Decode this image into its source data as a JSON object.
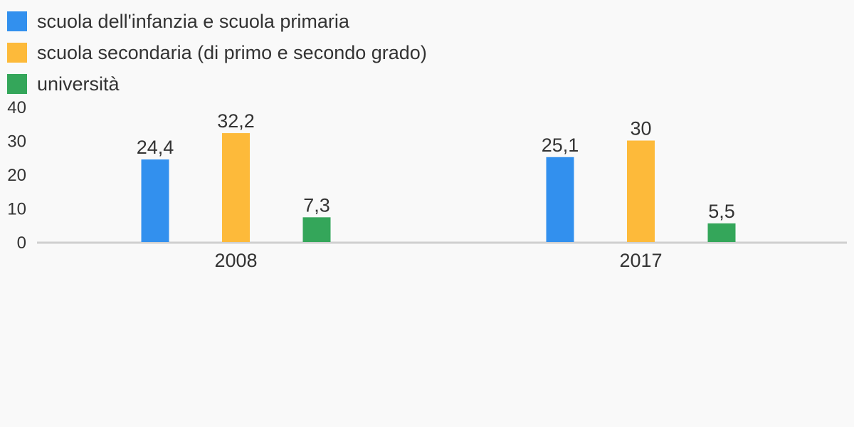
{
  "chart_data": {
    "type": "bar",
    "categories": [
      "2008",
      "2017"
    ],
    "series": [
      {
        "name": "scuola dell'infanzia e scuola primaria",
        "color": "#3290ee",
        "values": [
          24.4,
          25.1
        ],
        "labels": [
          "24,4",
          "25,1"
        ]
      },
      {
        "name": "scuola secondaria (di primo e secondo grado)",
        "color": "#fdba3a",
        "values": [
          32.2,
          30
        ],
        "labels": [
          "32,2",
          "30"
        ]
      },
      {
        "name": "università",
        "color": "#34a65a",
        "values": [
          7.3,
          5.5
        ],
        "labels": [
          "7,3",
          "5,5"
        ]
      }
    ],
    "y_ticks": [
      "0",
      "10",
      "20",
      "30",
      "40"
    ],
    "ylim": [
      0,
      40
    ],
    "legend_position": "top-left",
    "grid": false
  }
}
